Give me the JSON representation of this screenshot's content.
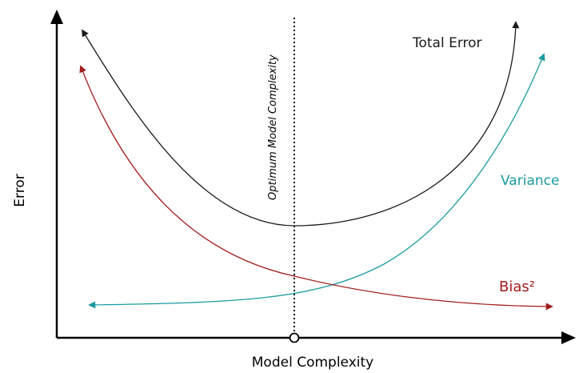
{
  "axes": {
    "x_label": "Model Complexity",
    "y_label": "Error"
  },
  "curves": {
    "total_error": {
      "label": "Total Error",
      "color": "#1a1a1a"
    },
    "variance": {
      "label": "Variance",
      "color": "#1a9ba1"
    },
    "bias": {
      "label": "Bias²",
      "color": "#a31c1c"
    }
  },
  "optimum": {
    "label": "Optimum Model Complexity"
  },
  "colors": {
    "axis": "#000000",
    "optimum_line": "#000000"
  }
}
